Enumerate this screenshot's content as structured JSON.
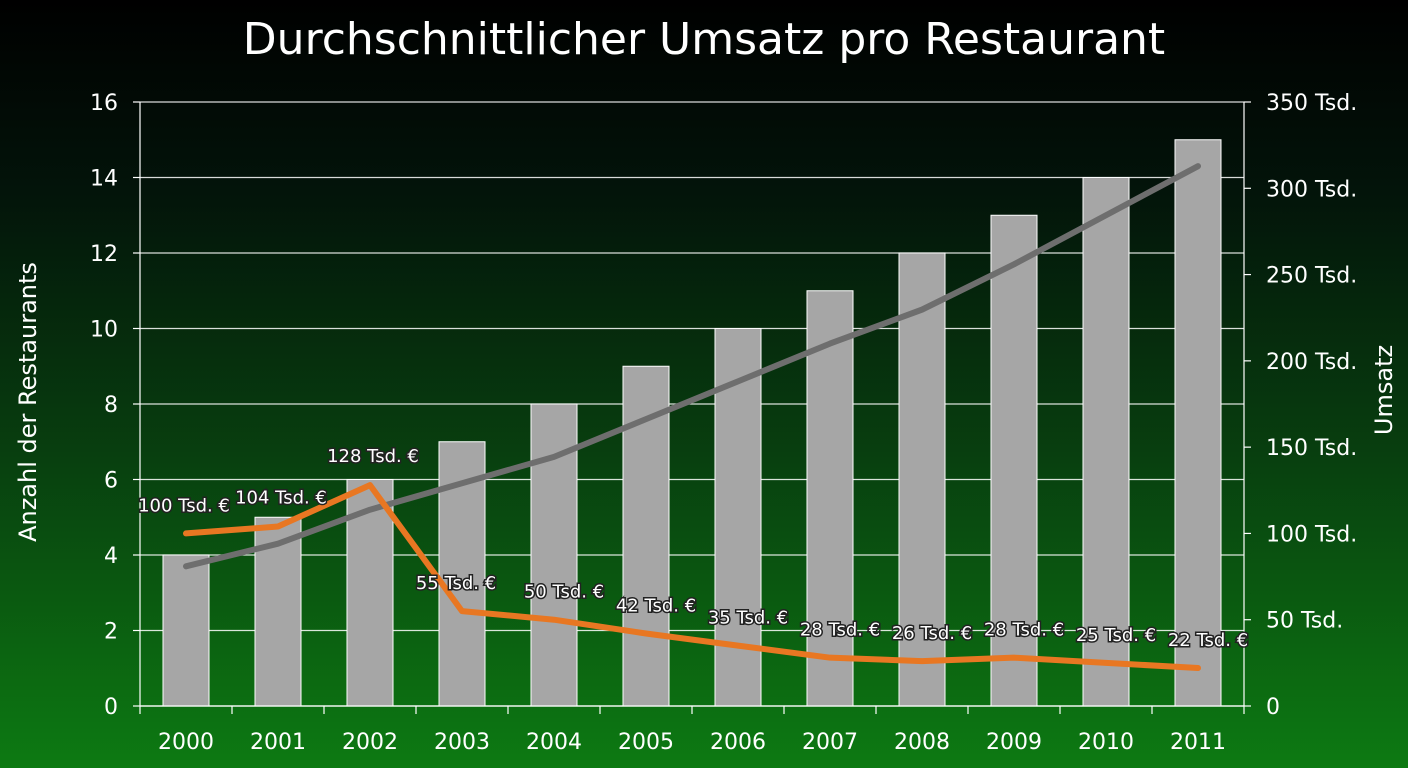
{
  "chart_data": {
    "type": "bar",
    "title": "Durchschnittlicher Umsatz pro Restaurant",
    "categories": [
      "2000",
      "2001",
      "2002",
      "2003",
      "2004",
      "2005",
      "2006",
      "2007",
      "2008",
      "2009",
      "2010",
      "2011"
    ],
    "ylabel_left": "Anzahl der Restaurants",
    "ylabel_right": "Umsatz",
    "ylim_left": [
      0,
      16
    ],
    "yticks_left": [
      "0",
      "2",
      "4",
      "6",
      "8",
      "10",
      "12",
      "14",
      "16"
    ],
    "ylim_right": [
      0,
      350
    ],
    "yticks_right": [
      "0",
      "50 Tsd.",
      "100 Tsd.",
      "150 Tsd.",
      "200 Tsd.",
      "250 Tsd.",
      "300 Tsd.",
      "350 Tsd."
    ],
    "grid": true,
    "series": [
      {
        "kind": "bar",
        "axis": "left",
        "color": "#a6a6a6",
        "values": [
          4,
          5,
          6,
          7,
          8,
          9,
          10,
          11,
          12,
          13,
          14,
          15
        ]
      },
      {
        "kind": "line",
        "axis": "left",
        "color": "#6e6e6e",
        "values": [
          3.7,
          4.3,
          5.2,
          5.9,
          6.6,
          7.6,
          8.6,
          9.6,
          10.5,
          11.7,
          13.0,
          14.3
        ]
      },
      {
        "kind": "line",
        "axis": "right",
        "color": "#e87722",
        "values": [
          100,
          104,
          128,
          55,
          50,
          42,
          35,
          28,
          26,
          28,
          25,
          22
        ],
        "labels": [
          "100 Tsd. €",
          "104 Tsd. €",
          "128 Tsd. €",
          "55 Tsd. €",
          "50 Tsd. €",
          "42 Tsd. €",
          "35 Tsd. €",
          "28 Tsd. €",
          "26 Tsd. €",
          "28 Tsd. €",
          "25 Tsd. €",
          "22 Tsd. €"
        ]
      }
    ]
  }
}
